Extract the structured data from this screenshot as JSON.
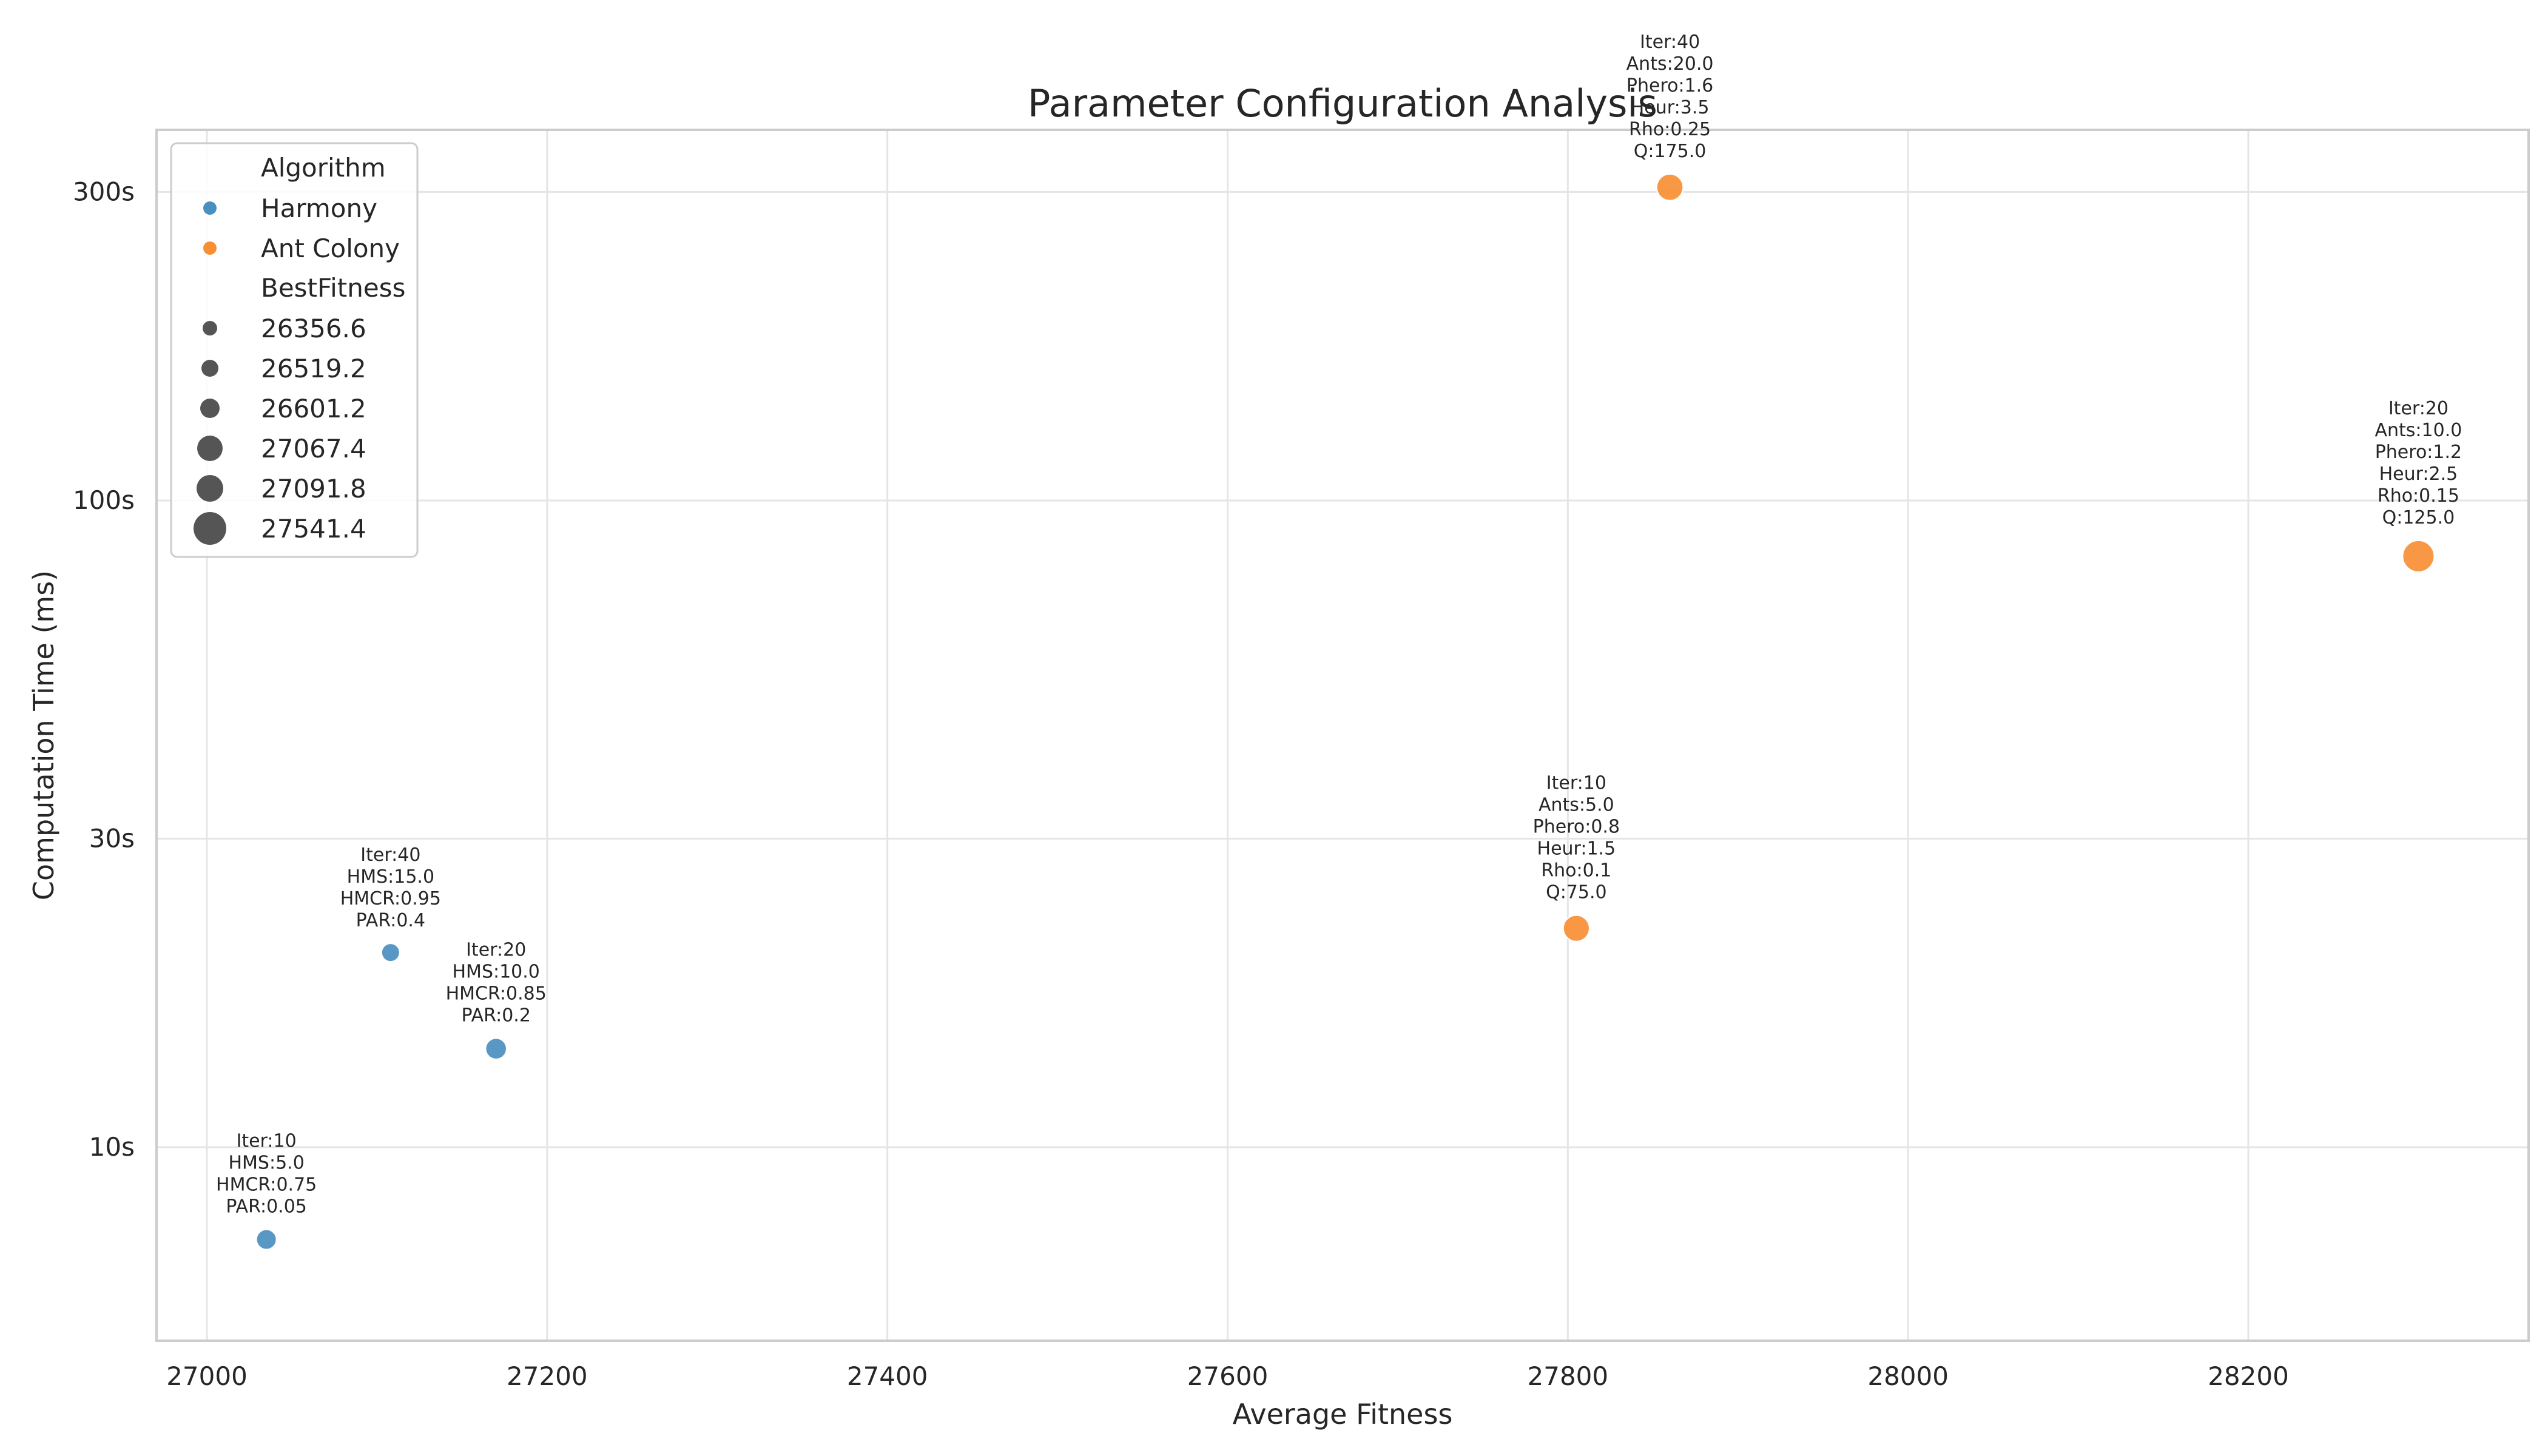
{
  "chart_data": {
    "type": "scatter",
    "title": "Parameter Configuration Analysis",
    "xlabel": "Average Fitness",
    "ylabel": "Computation Time (ms)",
    "x_ticks": [
      27000,
      27200,
      27400,
      27600,
      27800,
      28000,
      28200
    ],
    "x_tick_labels": [
      "27000",
      "27200",
      "27400",
      "27600",
      "27800",
      "28000",
      "28200"
    ],
    "y_scale": "log",
    "y_ticks": [
      10,
      30,
      100,
      300
    ],
    "y_tick_labels": [
      "10s",
      "30s",
      "100s",
      "300s"
    ],
    "grid": true,
    "legend_position": "top-left",
    "legend": {
      "hue_title": "Algorithm",
      "hue_entries": [
        {
          "label": "Harmony",
          "color": "#4b8fc0"
        },
        {
          "label": "Ant Colony",
          "color": "#f98f34"
        }
      ],
      "size_title": "BestFitness",
      "size_entries": [
        "26356.6",
        "26519.2",
        "26601.2",
        "27067.4",
        "27091.8",
        "27541.4"
      ],
      "size_values": [
        26356.6,
        26519.2,
        26601.2,
        27067.4,
        27091.8,
        27541.4
      ],
      "marker_color": "#555555"
    },
    "series": [
      {
        "name": "Harmony",
        "color": "#4b8fc0",
        "points": [
          {
            "x": 27035,
            "y": 7.2,
            "best_fitness": 26519.2,
            "annotation": [
              "Iter:10",
              "HMS:5.0",
              "HMCR:0.75",
              "PAR:0.05"
            ]
          },
          {
            "x": 27170,
            "y": 14.2,
            "best_fitness": 26601.2,
            "annotation": [
              "Iter:20",
              "HMS:10.0",
              "HMCR:0.85",
              "PAR:0.2"
            ]
          },
          {
            "x": 27108,
            "y": 20.0,
            "best_fitness": 26356.6,
            "annotation": [
              "Iter:40",
              "HMS:15.0",
              "HMCR:0.95",
              "PAR:0.4"
            ]
          }
        ]
      },
      {
        "name": "Ant Colony",
        "color": "#f98f34",
        "points": [
          {
            "x": 27805,
            "y": 21.8,
            "best_fitness": 27067.4,
            "annotation": [
              "Iter:10",
              "Ants:5.0",
              "Phero:0.8",
              "Heur:1.5",
              "Rho:0.1",
              "Q:75.0"
            ]
          },
          {
            "x": 28300,
            "y": 82.0,
            "best_fitness": 27541.4,
            "annotation": [
              "Iter:20",
              "Ants:10.0",
              "Phero:1.2",
              "Heur:2.5",
              "Rho:0.15",
              "Q:125.0"
            ]
          },
          {
            "x": 27860,
            "y": 305.0,
            "best_fitness": 27091.8,
            "annotation": [
              "Iter:40",
              "Ants:20.0",
              "Phero:1.6",
              "Heur:3.5",
              "Rho:0.25",
              "Q:175.0"
            ]
          }
        ]
      }
    ]
  }
}
